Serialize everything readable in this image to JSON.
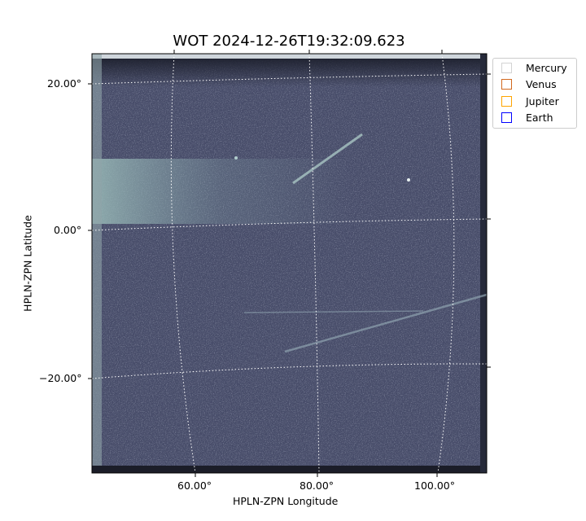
{
  "chart_data": {
    "type": "heatmap",
    "title": "WOT 2024-12-26T19:32:09.623",
    "xlabel": "HPLN-ZPN Longitude",
    "ylabel": "HPLN-ZPN Latitude",
    "xticks": [
      "60.00°",
      "80.00°",
      "100.00°"
    ],
    "yticks": [
      "20.00°",
      "0.00°",
      "−20.00°"
    ],
    "colormap": "bone",
    "grid": true,
    "legend_position": "outside-top-right",
    "legend": [
      {
        "name": "Mercury",
        "color": "#d3d3d3"
      },
      {
        "name": "Venus",
        "color": "#d2691e"
      },
      {
        "name": "Jupiter",
        "color": "#ffa500"
      },
      {
        "name": "Earth",
        "color": "#0000ff"
      }
    ]
  }
}
